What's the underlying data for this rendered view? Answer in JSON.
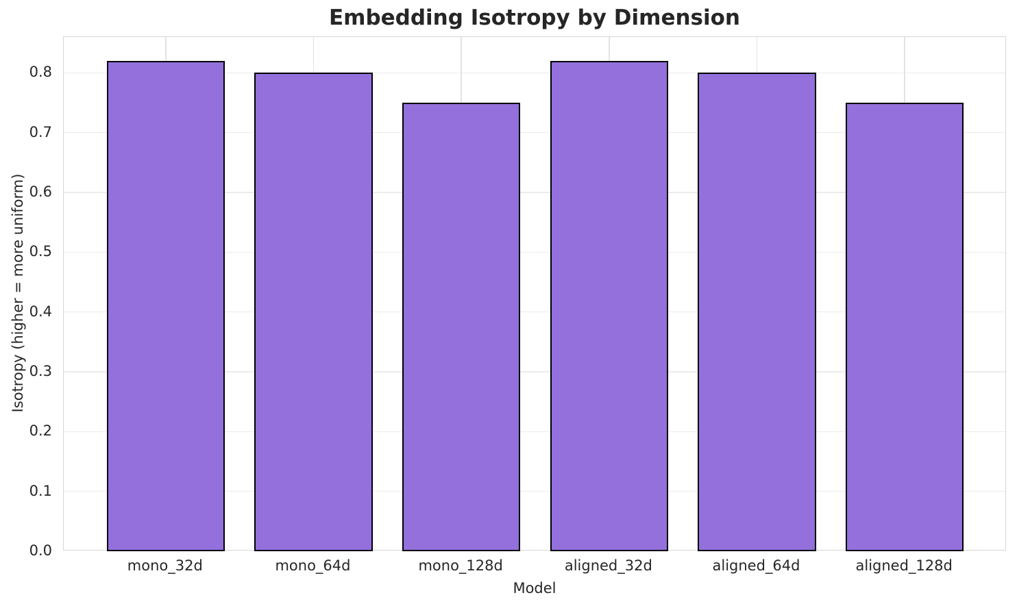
{
  "chart_data": {
    "type": "bar",
    "title": "Embedding Isotropy by Dimension",
    "xlabel": "Model",
    "ylabel": "Isotropy (higher = more uniform)",
    "categories": [
      "mono_32d",
      "mono_64d",
      "mono_128d",
      "aligned_32d",
      "aligned_64d",
      "aligned_128d"
    ],
    "values": [
      0.82,
      0.8,
      0.75,
      0.82,
      0.8,
      0.75
    ],
    "ylim": [
      0,
      0.86
    ],
    "yticks": [
      0.0,
      0.1,
      0.2,
      0.3,
      0.4,
      0.5,
      0.6,
      0.7,
      0.8
    ],
    "grid": true,
    "legend": null,
    "bar_color": "#9370DB",
    "bar_edge_color": "#000000",
    "background_color": "#ffffff",
    "text_color": "#262626"
  }
}
